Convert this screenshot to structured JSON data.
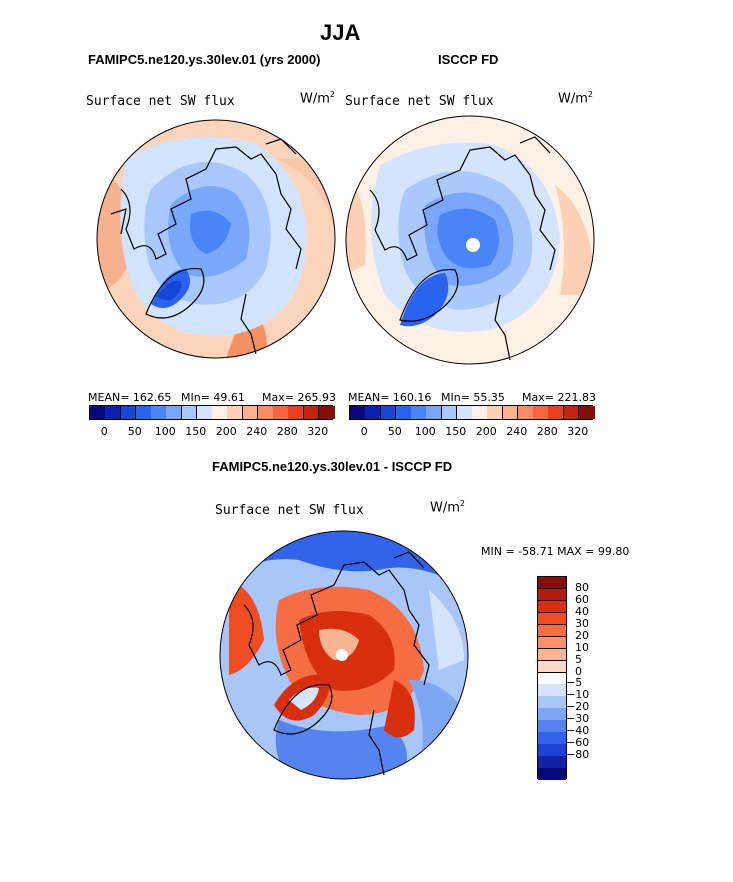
{
  "figure": {
    "title": "JJA",
    "panel_model_title": "FAMIPC5.ne120.ys.30lev.01 (yrs 2000)",
    "panel_obs_title": "ISCCP FD",
    "panel_diff_title": "FAMIPC5.ne120.ys.30lev.01 - ISCCP FD"
  },
  "panels": {
    "model": {
      "variable": "Surface net SW flux",
      "units": "W/m",
      "units_exp": "2",
      "mean": "MEAN= 162.65",
      "min": "MIn=  49.61",
      "max": "Max= 265.93"
    },
    "obs": {
      "variable": "Surface net SW flux",
      "units": "W/m",
      "units_exp": "2",
      "mean": "MEAN= 160.16",
      "min": "MIn=  55.35",
      "max": "Max= 221.83"
    },
    "diff": {
      "variable": "Surface net SW flux",
      "units": "W/m",
      "units_exp": "2",
      "minmax": "MIN = -58.71 MAX =  99.80"
    }
  },
  "colorbars": {
    "field": {
      "colors": [
        "#08087a",
        "#0d1fb0",
        "#1745d6",
        "#2a63ee",
        "#4a85f5",
        "#78a6fa",
        "#a9c8fc",
        "#d4e4fd",
        "#fdf0e4",
        "#fcd0b4",
        "#fbb08e",
        "#f98c64",
        "#f5653e",
        "#e73f20",
        "#c22412",
        "#840e08"
      ],
      "ticks": [
        "0",
        "50",
        "100",
        "150",
        "200",
        "240",
        "280",
        "320"
      ]
    },
    "diff": {
      "colors": [
        "#840e08",
        "#b21a0c",
        "#d8300f",
        "#ee4d24",
        "#f56e43",
        "#f99068",
        "#fbb491",
        "#fdd8c2",
        "#ffffff",
        "#d6e4fb",
        "#a9c6f8",
        "#7ea6f3",
        "#5484ee",
        "#3164e8",
        "#1c43d2",
        "#1322a4",
        "#07077a"
      ],
      "ticks": [
        "80",
        "60",
        "40",
        "30",
        "20",
        "10",
        "5",
        "0",
        "-5",
        "-10",
        "-20",
        "-30",
        "-40",
        "-60",
        "-80"
      ]
    }
  }
}
